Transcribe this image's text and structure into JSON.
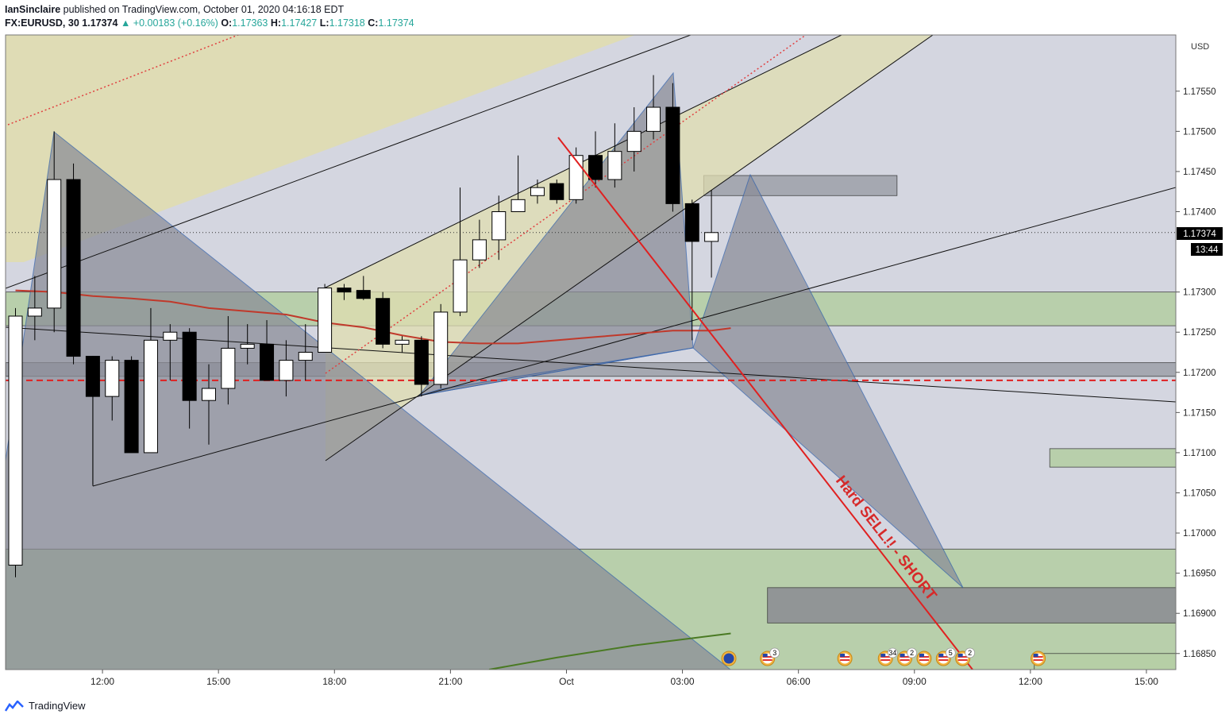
{
  "header": {
    "author": "IanSinclaire",
    "published": "published on TradingView.com, October 01, 2020 04:16:18 EDT",
    "symbol": "FX:EURUSD, 30",
    "last": "1.17374",
    "change": "+0.00183 (+0.16%)",
    "open_label": "O:",
    "open": "1.17363",
    "high_label": "H:",
    "high": "1.17427",
    "low_label": "L:",
    "low": "1.17318",
    "close_label": "C:",
    "close": "1.17374"
  },
  "footer": {
    "brand": "TradingView"
  },
  "colors": {
    "up_candle": "#ffffff",
    "down_candle": "#000000",
    "ma": "#c0392b",
    "ma_long": "#4a7a23",
    "sell_arrow": "#e02020",
    "zone_green": "#b6cfa6",
    "zone_gray": "#a0a4ad",
    "channel_yellow": "#e0ddb0",
    "bg": "#d4d6e0"
  },
  "chart_data": {
    "type": "candlestick",
    "symbol": "FX:EURUSD",
    "timeframe": "30",
    "currency": "USD",
    "ylim": [
      1.1683,
      1.1762
    ],
    "y_ticks": [
      1.1685,
      1.169,
      1.1695,
      1.17,
      1.1705,
      1.171,
      1.1715,
      1.172,
      1.1725,
      1.173,
      1.174,
      1.1745,
      1.175,
      1.1755
    ],
    "y_tick_labels": [
      "1.16850",
      "1.16900",
      "1.16950",
      "1.17000",
      "1.17050",
      "1.17100",
      "1.17150",
      "1.17200",
      "1.17250",
      "1.17300",
      "1.17400",
      "1.17450",
      "1.17500",
      "1.17550"
    ],
    "x_ticks": [
      {
        "bar": 4.5,
        "label": "12:00"
      },
      {
        "bar": 10.5,
        "label": "15:00"
      },
      {
        "bar": 16.5,
        "label": "18:00"
      },
      {
        "bar": 22.5,
        "label": "21:00"
      },
      {
        "bar": 28.5,
        "label": "Oct"
      },
      {
        "bar": 34.5,
        "label": "03:00"
      },
      {
        "bar": 40.5,
        "label": "06:00"
      },
      {
        "bar": 46.5,
        "label": "09:00"
      },
      {
        "bar": 52.5,
        "label": "12:00"
      },
      {
        "bar": 58.5,
        "label": "15:00"
      }
    ],
    "price_label": "1.17374",
    "countdown_label": "13:44",
    "annotation": "Hard SELL!! - SHORT",
    "candles": [
      {
        "o": 1.1696,
        "h": 1.1728,
        "l": 1.16945,
        "c": 1.1727
      },
      {
        "o": 1.1727,
        "h": 1.1732,
        "l": 1.1724,
        "c": 1.1728
      },
      {
        "o": 1.1728,
        "h": 1.175,
        "l": 1.1725,
        "c": 1.1744
      },
      {
        "o": 1.1744,
        "h": 1.1746,
        "l": 1.1721,
        "c": 1.1722
      },
      {
        "o": 1.1722,
        "h": 1.1722,
        "l": 1.1706,
        "c": 1.1717
      },
      {
        "o": 1.1717,
        "h": 1.1722,
        "l": 1.1714,
        "c": 1.17215
      },
      {
        "o": 1.17215,
        "h": 1.1722,
        "l": 1.171,
        "c": 1.171
      },
      {
        "o": 1.171,
        "h": 1.1728,
        "l": 1.171,
        "c": 1.1724
      },
      {
        "o": 1.1724,
        "h": 1.1726,
        "l": 1.1719,
        "c": 1.1725
      },
      {
        "o": 1.1725,
        "h": 1.17255,
        "l": 1.1713,
        "c": 1.17165
      },
      {
        "o": 1.17165,
        "h": 1.1721,
        "l": 1.1711,
        "c": 1.1718
      },
      {
        "o": 1.1718,
        "h": 1.1727,
        "l": 1.1716,
        "c": 1.1723
      },
      {
        "o": 1.1723,
        "h": 1.1726,
        "l": 1.1721,
        "c": 1.17235
      },
      {
        "o": 1.17235,
        "h": 1.17265,
        "l": 1.1719,
        "c": 1.1719
      },
      {
        "o": 1.1719,
        "h": 1.1724,
        "l": 1.1717,
        "c": 1.17215
      },
      {
        "o": 1.17215,
        "h": 1.1726,
        "l": 1.1719,
        "c": 1.17225
      },
      {
        "o": 1.17225,
        "h": 1.1731,
        "l": 1.17225,
        "c": 1.17305
      },
      {
        "o": 1.17305,
        "h": 1.1731,
        "l": 1.1729,
        "c": 1.173
      },
      {
        "o": 1.17302,
        "h": 1.1732,
        "l": 1.1729,
        "c": 1.17292
      },
      {
        "o": 1.17292,
        "h": 1.173,
        "l": 1.1723,
        "c": 1.17235
      },
      {
        "o": 1.17235,
        "h": 1.17245,
        "l": 1.17225,
        "c": 1.1724
      },
      {
        "o": 1.1724,
        "h": 1.17245,
        "l": 1.1717,
        "c": 1.17185
      },
      {
        "o": 1.17185,
        "h": 1.17285,
        "l": 1.1718,
        "c": 1.17275
      },
      {
        "o": 1.17275,
        "h": 1.1743,
        "l": 1.1727,
        "c": 1.1734
      },
      {
        "o": 1.1734,
        "h": 1.1739,
        "l": 1.1733,
        "c": 1.17365
      },
      {
        "o": 1.17365,
        "h": 1.1742,
        "l": 1.1734,
        "c": 1.174
      },
      {
        "o": 1.174,
        "h": 1.1747,
        "l": 1.174,
        "c": 1.17415
      },
      {
        "o": 1.1742,
        "h": 1.1744,
        "l": 1.1741,
        "c": 1.1743
      },
      {
        "o": 1.17435,
        "h": 1.1744,
        "l": 1.1741,
        "c": 1.17415
      },
      {
        "o": 1.17415,
        "h": 1.1748,
        "l": 1.1741,
        "c": 1.1747
      },
      {
        "o": 1.1747,
        "h": 1.175,
        "l": 1.1743,
        "c": 1.1744
      },
      {
        "o": 1.1744,
        "h": 1.1751,
        "l": 1.1743,
        "c": 1.17475
      },
      {
        "o": 1.17475,
        "h": 1.1753,
        "l": 1.1745,
        "c": 1.175
      },
      {
        "o": 1.175,
        "h": 1.1757,
        "l": 1.1749,
        "c": 1.1753
      },
      {
        "o": 1.1753,
        "h": 1.1756,
        "l": 1.174,
        "c": 1.1741
      },
      {
        "o": 1.1741,
        "h": 1.17415,
        "l": 1.1724,
        "c": 1.17363
      },
      {
        "o": 1.17363,
        "h": 1.17427,
        "l": 1.17318,
        "c": 1.17374
      }
    ],
    "horizontal_levels": [
      {
        "price": 1.1719,
        "style": "dashed",
        "color": "#e02020"
      },
      {
        "price": 1.17374,
        "style": "dotted",
        "color": "#333333"
      }
    ],
    "zones": [
      {
        "from_bar": -0.5,
        "to_bar": 61,
        "top": 1.173,
        "bottom": 1.17258,
        "kind": "green"
      },
      {
        "from_bar": -0.5,
        "to_bar": 61,
        "top": 1.17212,
        "bottom": 1.17195,
        "kind": "gray"
      },
      {
        "from_bar": -0.5,
        "to_bar": 61,
        "top": 1.1698,
        "bottom": 1.1683,
        "kind": "green"
      },
      {
        "from_bar": 53.5,
        "to_bar": 61,
        "top": 1.17105,
        "bottom": 1.17082,
        "kind": "green"
      },
      {
        "from_bar": 35.6,
        "to_bar": 45.6,
        "top": 1.17445,
        "bottom": 1.1742,
        "kind": "gray"
      },
      {
        "from_bar": 38.9,
        "to_bar": 61,
        "top": 1.16932,
        "bottom": 1.16888,
        "kind": "darkgray"
      },
      {
        "from_bar": 52.7,
        "to_bar": 61,
        "top": 1.1685,
        "bottom": 1.1683,
        "kind": "green"
      }
    ],
    "ma": [
      {
        "bar": 0,
        "p": 1.17302
      },
      {
        "bar": 2,
        "p": 1.173
      },
      {
        "bar": 4,
        "p": 1.17295
      },
      {
        "bar": 6,
        "p": 1.17292
      },
      {
        "bar": 8,
        "p": 1.17288
      },
      {
        "bar": 10,
        "p": 1.1728
      },
      {
        "bar": 12,
        "p": 1.17276
      },
      {
        "bar": 14,
        "p": 1.17272
      },
      {
        "bar": 16,
        "p": 1.17262
      },
      {
        "bar": 18,
        "p": 1.17256
      },
      {
        "bar": 20,
        "p": 1.17246
      },
      {
        "bar": 22,
        "p": 1.17238
      },
      {
        "bar": 24,
        "p": 1.17236
      },
      {
        "bar": 26,
        "p": 1.17236
      },
      {
        "bar": 28,
        "p": 1.1724
      },
      {
        "bar": 30,
        "p": 1.17244
      },
      {
        "bar": 32,
        "p": 1.17248
      },
      {
        "bar": 34,
        "p": 1.17252
      },
      {
        "bar": 36,
        "p": 1.17252
      },
      {
        "bar": 37,
        "p": 1.17255
      }
    ],
    "ma_long": [
      {
        "bar": 24.5,
        "p": 1.1683
      },
      {
        "bar": 28,
        "p": 1.16845
      },
      {
        "bar": 32,
        "p": 1.1686
      },
      {
        "bar": 37,
        "p": 1.16875
      }
    ],
    "events": [
      {
        "bar": 36.9,
        "flag": "eu",
        "count": ""
      },
      {
        "bar": 38.9,
        "flag": "us",
        "count": "3"
      },
      {
        "bar": 42.9,
        "flag": "us",
        "count": ""
      },
      {
        "bar": 45.0,
        "flag": "us",
        "count": "34"
      },
      {
        "bar": 46.0,
        "flag": "us",
        "count": "2"
      },
      {
        "bar": 47.0,
        "flag": "us",
        "count": ""
      },
      {
        "bar": 48.0,
        "flag": "us",
        "count": "5"
      },
      {
        "bar": 49.0,
        "flag": "us",
        "count": "2"
      },
      {
        "bar": 52.9,
        "flag": "us",
        "count": ""
      }
    ]
  }
}
